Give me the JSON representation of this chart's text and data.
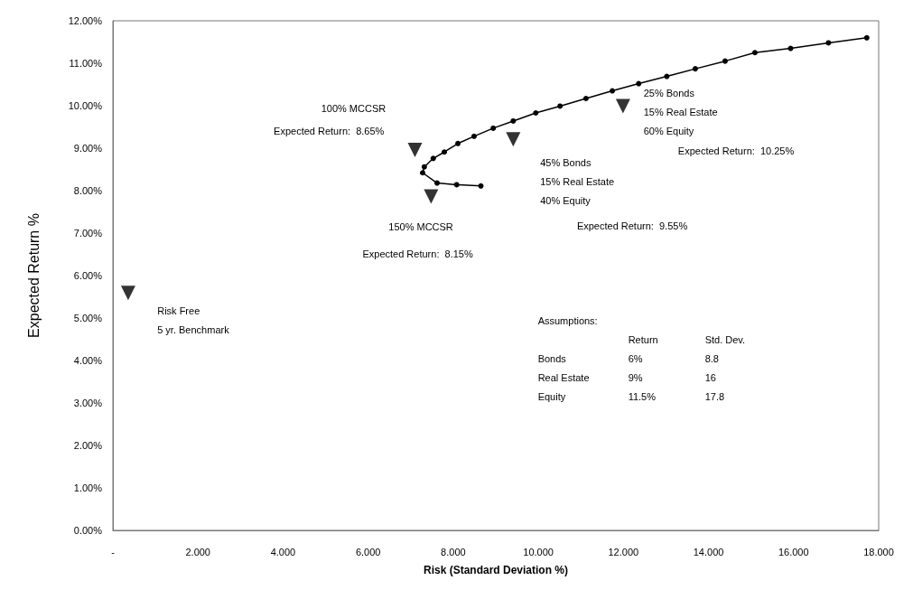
{
  "chart_data": {
    "type": "line",
    "xlabel": "Risk (Standard Deviation %)",
    "ylabel": "Expected Return %",
    "xlim": [
      0,
      18
    ],
    "ylim": [
      0,
      12
    ],
    "xticks": [
      {
        "value": 0,
        "label": "-"
      },
      {
        "value": 2,
        "label": "2.000"
      },
      {
        "value": 4,
        "label": "4.000"
      },
      {
        "value": 6,
        "label": "6.000"
      },
      {
        "value": 8,
        "label": "8.000"
      },
      {
        "value": 10,
        "label": "10.000"
      },
      {
        "value": 12,
        "label": "12.000"
      },
      {
        "value": 14,
        "label": "14.000"
      },
      {
        "value": 16,
        "label": "16.000"
      },
      {
        "value": 18,
        "label": "18.000"
      }
    ],
    "yticks": [
      {
        "value": 0,
        "label": "0.00%"
      },
      {
        "value": 1,
        "label": "1.00%"
      },
      {
        "value": 2,
        "label": "2.00%"
      },
      {
        "value": 3,
        "label": "3.00%"
      },
      {
        "value": 4,
        "label": "4.00%"
      },
      {
        "value": 5,
        "label": "5.00%"
      },
      {
        "value": 6,
        "label": "6.00%"
      },
      {
        "value": 7,
        "label": "7.00%"
      },
      {
        "value": 8,
        "label": "8.00%"
      },
      {
        "value": 9,
        "label": "9.00%"
      },
      {
        "value": 10,
        "label": "10.00%"
      },
      {
        "value": 11,
        "label": "11.00%"
      },
      {
        "value": 12,
        "label": "12.00%"
      }
    ],
    "grid": false,
    "series": [
      {
        "color": "#000000",
        "marker": "circle",
        "line_style": "solid",
        "x": [
          8.65,
          8.08,
          7.62,
          7.28,
          7.32,
          7.53,
          7.79,
          8.11,
          8.49,
          8.94,
          9.41,
          9.94,
          10.51,
          11.12,
          11.74,
          12.36,
          13.02,
          13.69,
          14.39,
          15.09,
          15.93,
          16.82,
          17.72
        ],
        "values": [
          8.11,
          8.14,
          8.18,
          8.42,
          8.56,
          8.76,
          8.91,
          9.11,
          9.28,
          9.47,
          9.64,
          9.83,
          9.99,
          10.17,
          10.35,
          10.52,
          10.69,
          10.87,
          11.05,
          11.25,
          11.35,
          11.48,
          11.6
        ]
      },
      {
        "type": "scatter",
        "color": "#000000",
        "marker": "triangle",
        "x": [
          0.36,
          7.1,
          7.48,
          9.41,
          11.99
        ],
        "values": [
          5.59,
          8.96,
          7.86,
          9.21,
          9.99
        ]
      }
    ],
    "annotations": [
      "100% MCCSR",
      "Expected Return:  8.65%",
      "150% MCCSR",
      "Expected Return:  8.15%",
      "45% Bonds\n15% Real Estate\n40% Equity",
      "Expected Return:  9.55%",
      "25% Bonds\n15% Real Estate\n60% Equity",
      "Expected Return:  10.25%",
      "Risk Free\n5 yr. Benchmark",
      "Assumptions:\n\tReturn\tStd. Dev.\nBonds\t6%\t8.8\nReal Estate\t9%\t16\nEquity\t11.5%\t17.8"
    ]
  }
}
